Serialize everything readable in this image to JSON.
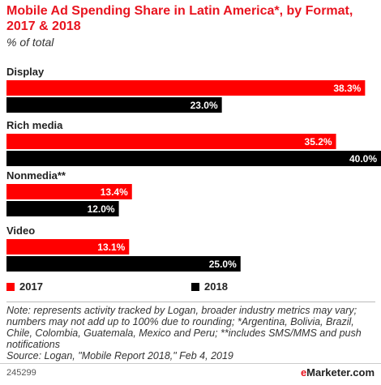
{
  "header": {
    "title": "Mobile Ad Spending Share in Latin America*, by Format, 2017 & 2018",
    "subtitle": "% of total"
  },
  "legend": {
    "items": [
      {
        "label": "2017",
        "color": "#ff0000"
      },
      {
        "label": "2018",
        "color": "#000000"
      }
    ]
  },
  "note": "Note: represents activity tracked by Logan, broader industry metrics may vary; numbers may not add up to 100% due to rounding; *Argentina, Bolivia, Brazil, Chile, Colombia, Guatemala, Mexico and Peru; **includes SMS/MMS and push notifications",
  "source": "Source: Logan, \"Mobile Report 2018,\" Feb 4, 2019",
  "footer": {
    "chart_id": "245299",
    "logo_prefix": "e",
    "logo_main": "Marketer",
    "logo_suffix": ".com"
  },
  "chart_data": {
    "type": "bar",
    "orientation": "horizontal",
    "categories": [
      "Display",
      "Rich media",
      "Nonmedia**",
      "Video"
    ],
    "series": [
      {
        "name": "2017",
        "color": "#ff0000",
        "values": [
          38.3,
          35.2,
          13.4,
          13.1
        ],
        "labels": [
          "38.3%",
          "35.2%",
          "13.4%",
          "13.1%"
        ]
      },
      {
        "name": "2018",
        "color": "#000000",
        "values": [
          23.0,
          40.0,
          12.0,
          25.0
        ],
        "labels": [
          "23.0%",
          "40.0%",
          "12.0%",
          "25.0%"
        ]
      }
    ],
    "title": "Mobile Ad Spending Share in Latin America*, by Format, 2017 & 2018",
    "subtitle": "% of total",
    "xlim": [
      0,
      40
    ],
    "grid": false,
    "legend_position": "bottom-left"
  }
}
